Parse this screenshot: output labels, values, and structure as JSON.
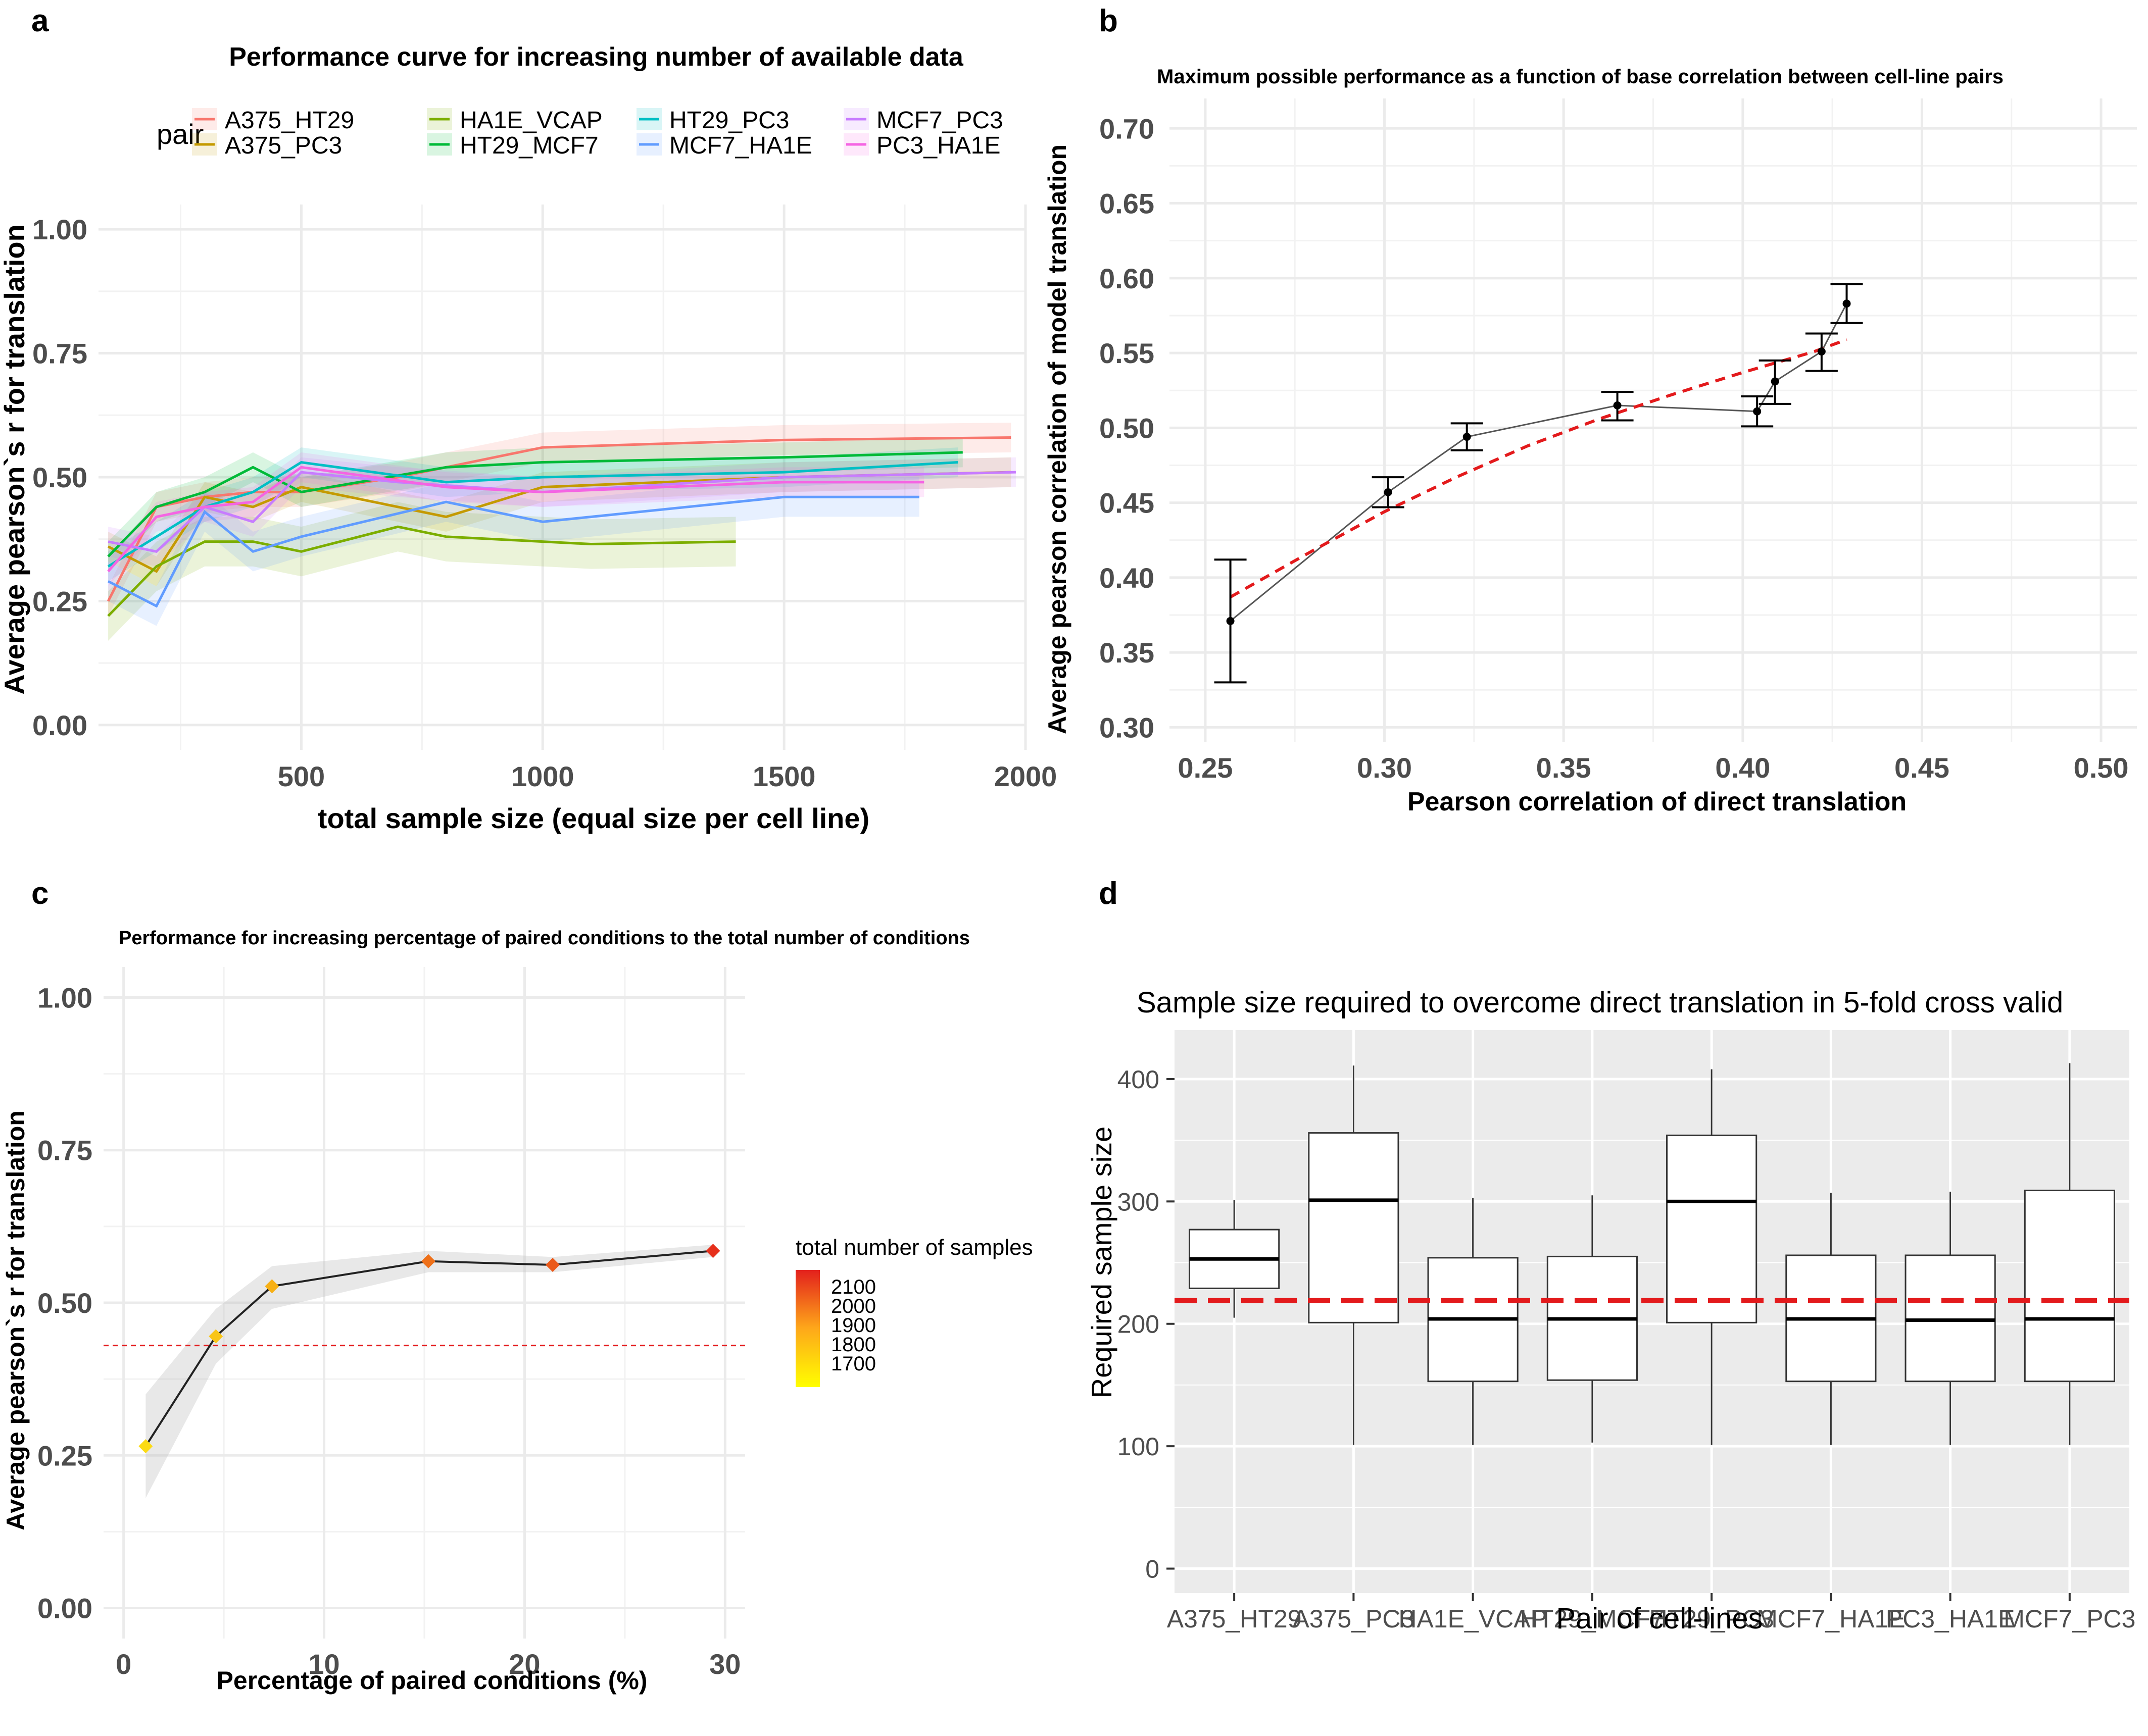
{
  "panels": {
    "a": {
      "letter": "a",
      "title": "Performance curve for increasing number of available data",
      "xlabel": "total sample size (equal size per cell line)",
      "ylabel": "Average pearson`s r for translation",
      "legend_title": "pair",
      "legend_placement": "top",
      "grid": true,
      "xlim": [
        80,
        2000
      ],
      "ylim": [
        -0.05,
        1.05
      ],
      "xticks": [
        500,
        1000,
        1500,
        2000
      ],
      "yticks": [
        "0.00",
        "0.25",
        "0.50",
        "0.75",
        "1.00"
      ]
    },
    "b": {
      "letter": "b",
      "title": "Maximum possible performance as a function of base correlation between cell-line pairs",
      "xlabel": "Pearson correlation of direct translation",
      "ylabel": "Average pearson correlation of model translation",
      "grid": true,
      "xlim": [
        0.24,
        0.51
      ],
      "ylim": [
        0.29,
        0.72
      ],
      "xticks": [
        "0.25",
        "0.30",
        "0.35",
        "0.40",
        "0.45",
        "0.50"
      ],
      "yticks": [
        "0.30",
        "0.35",
        "0.40",
        "0.45",
        "0.50",
        "0.55",
        "0.60",
        "0.65",
        "0.70"
      ]
    },
    "c": {
      "letter": "c",
      "title": "Performance for increasing percentage of paired conditions to the total number of conditions",
      "xlabel": "Percentage of paired conditions (%)",
      "ylabel": "Average pearson`s r for translation",
      "legend_title": "total number of samples",
      "legend_labels": [
        "2100",
        "2000",
        "1900",
        "1800",
        "1700"
      ],
      "grid": true,
      "xlim": [
        -1,
        31
      ],
      "ylim": [
        -0.05,
        1.05
      ],
      "xticks": [
        "0",
        "10",
        "20",
        "30"
      ],
      "yticks": [
        "0.00",
        "0.25",
        "0.50",
        "0.75",
        "1.00"
      ]
    },
    "d": {
      "letter": "d",
      "title": "Sample size required to overcome direct translation in 5-fold cross valid",
      "xlabel": "Pair of cell-lines",
      "ylabel": "Required sample size",
      "grid": true,
      "background": "#ebebeb",
      "ylim": [
        -20,
        440
      ],
      "yticks": [
        "0",
        "100",
        "200",
        "300",
        "400"
      ]
    }
  },
  "chart_data": [
    {
      "type": "line",
      "panel": "a",
      "title": "Performance curve for increasing number of available data",
      "xlabel": "total sample size (equal size per cell line)",
      "ylabel": "Average pearson`s r for translation",
      "series": [
        {
          "name": "A375_HT29",
          "color": "#f8766d",
          "x": [
            100,
            200,
            300,
            400,
            500,
            700,
            1000,
            1500,
            1970
          ],
          "y": [
            0.25,
            0.44,
            0.46,
            0.47,
            0.47,
            0.5,
            0.56,
            0.575,
            0.58
          ],
          "band": 0.03
        },
        {
          "name": "A375_PC3",
          "color": "#c49a00",
          "x": [
            100,
            200,
            300,
            400,
            500,
            800,
            1000,
            1500,
            1970
          ],
          "y": [
            0.36,
            0.31,
            0.46,
            0.44,
            0.48,
            0.42,
            0.48,
            0.5,
            0.51
          ],
          "band": 0.03
        },
        {
          "name": "HA1E_VCAP",
          "color": "#7cae00",
          "x": [
            100,
            200,
            300,
            400,
            500,
            700,
            800,
            1000,
            1100,
            1400
          ],
          "y": [
            0.22,
            0.32,
            0.37,
            0.37,
            0.35,
            0.4,
            0.38,
            0.37,
            0.365,
            0.37
          ],
          "band": 0.05
        },
        {
          "name": "HT29_MCF7",
          "color": "#00ba38",
          "x": [
            100,
            200,
            300,
            400,
            500,
            800,
            1000,
            1500,
            1870
          ],
          "y": [
            0.34,
            0.44,
            0.47,
            0.52,
            0.47,
            0.52,
            0.53,
            0.54,
            0.55
          ],
          "band": 0.03
        },
        {
          "name": "HT29_PC3",
          "color": "#00bfc4",
          "x": [
            100,
            200,
            300,
            400,
            500,
            800,
            1000,
            1500,
            1860
          ],
          "y": [
            0.32,
            0.38,
            0.44,
            0.47,
            0.53,
            0.49,
            0.5,
            0.51,
            0.53
          ],
          "band": 0.03
        },
        {
          "name": "MCF7_HA1E",
          "color": "#619cff",
          "x": [
            100,
            200,
            300,
            400,
            500,
            800,
            1000,
            1500,
            1780
          ],
          "y": [
            0.29,
            0.24,
            0.43,
            0.35,
            0.38,
            0.45,
            0.41,
            0.46,
            0.46
          ],
          "band": 0.04
        },
        {
          "name": "MCF7_PC3",
          "color": "#c77cff",
          "x": [
            100,
            200,
            300,
            400,
            500,
            700,
            1000,
            1500,
            1980
          ],
          "y": [
            0.37,
            0.35,
            0.44,
            0.41,
            0.51,
            0.49,
            0.47,
            0.5,
            0.51
          ],
          "band": 0.03
        },
        {
          "name": "PC3_HA1E",
          "color": "#f564e3",
          "x": [
            100,
            200,
            300,
            400,
            500,
            800,
            1000,
            1500,
            1790
          ],
          "y": [
            0.31,
            0.42,
            0.44,
            0.45,
            0.52,
            0.48,
            0.47,
            0.49,
            0.49
          ],
          "band": 0.03
        }
      ]
    },
    {
      "type": "scatter",
      "panel": "b",
      "title": "Maximum possible performance as a function of base correlation between cell-line pairs",
      "xlabel": "Pearson correlation of direct translation",
      "ylabel": "Average pearson correlation of model translation",
      "points": [
        {
          "x": 0.257,
          "y": 0.371,
          "ymin": 0.33,
          "ymax": 0.412
        },
        {
          "x": 0.301,
          "y": 0.457,
          "ymin": 0.447,
          "ymax": 0.467
        },
        {
          "x": 0.323,
          "y": 0.494,
          "ymin": 0.485,
          "ymax": 0.503
        },
        {
          "x": 0.365,
          "y": 0.515,
          "ymin": 0.505,
          "ymax": 0.524
        },
        {
          "x": 0.404,
          "y": 0.511,
          "ymin": 0.501,
          "ymax": 0.521
        },
        {
          "x": 0.409,
          "y": 0.531,
          "ymin": 0.516,
          "ymax": 0.545
        },
        {
          "x": 0.422,
          "y": 0.551,
          "ymin": 0.538,
          "ymax": 0.563
        },
        {
          "x": 0.429,
          "y": 0.583,
          "ymin": 0.57,
          "ymax": 0.596
        }
      ],
      "fit": {
        "x": [
          0.257,
          0.28,
          0.3,
          0.32,
          0.34,
          0.36,
          0.38,
          0.4,
          0.42,
          0.429
        ],
        "y": [
          0.387,
          0.418,
          0.444,
          0.467,
          0.488,
          0.506,
          0.522,
          0.537,
          0.551,
          0.559
        ],
        "color": "#e31a1c"
      }
    },
    {
      "type": "line",
      "panel": "c",
      "title": "Performance for increasing percentage of paired conditions to the total number of conditions",
      "xlabel": "Percentage of paired conditions (%)",
      "ylabel": "Average pearson`s r for translation",
      "x": [
        1.1,
        4.6,
        7.4,
        15.2,
        21.4,
        29.4
      ],
      "y": [
        0.265,
        0.445,
        0.527,
        0.568,
        0.562,
        0.585
      ],
      "ymin": [
        0.18,
        0.4,
        0.49,
        0.55,
        0.55,
        0.575
      ],
      "ymax": [
        0.35,
        0.49,
        0.56,
        0.585,
        0.575,
        0.595
      ],
      "total_samples": [
        1700,
        1750,
        1800,
        1950,
        2000,
        2100
      ],
      "hline": 0.43,
      "hline_color": "#e31a1c"
    },
    {
      "type": "box",
      "panel": "d",
      "title": "Sample size required to overcome direct translation in 5-fold cross valid",
      "xlabel": "Pair of cell-lines",
      "ylabel": "Required sample size",
      "categories": [
        "A375_HT29",
        "A375_PC3",
        "HA1E_VCAP",
        "HT29_MCF7",
        "HT29_PC3",
        "MCF7_HA1E",
        "PC3_HA1E",
        "MCF7_PC3"
      ],
      "boxes": [
        {
          "min": 205,
          "q1": 229,
          "median": 253,
          "q3": 277,
          "max": 301,
          "points": [
            205,
            301
          ]
        },
        {
          "min": 101,
          "q1": 201,
          "median": 301,
          "q3": 356,
          "max": 411,
          "points": [
            101,
            301,
            411
          ]
        },
        {
          "min": 101,
          "q1": 153,
          "median": 204,
          "q3": 254,
          "max": 303,
          "points": [
            101,
            204,
            303
          ]
        },
        {
          "min": 103,
          "q1": 154,
          "median": 204,
          "q3": 255,
          "max": 305,
          "points": [
            103,
            204,
            305
          ]
        },
        {
          "min": 101,
          "q1": 201,
          "median": 300,
          "q3": 354,
          "max": 408,
          "points": [
            101,
            300,
            408
          ]
        },
        {
          "min": 101,
          "q1": 153,
          "median": 204,
          "q3": 256,
          "max": 307,
          "points": [
            101,
            204,
            307
          ]
        },
        {
          "min": 101,
          "q1": 153,
          "median": 203,
          "q3": 256,
          "max": 308,
          "points": [
            101,
            203,
            308
          ]
        },
        {
          "min": 101,
          "q1": 153,
          "median": 204,
          "q3": 309,
          "max": 413,
          "points": [
            101,
            204,
            413
          ]
        }
      ],
      "hline": 219,
      "hline_color": "#e31a1c"
    }
  ]
}
